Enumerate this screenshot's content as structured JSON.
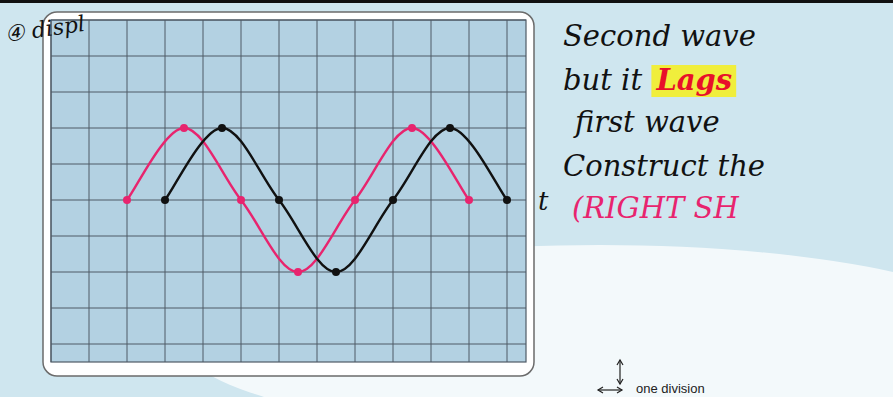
{
  "chart_data": {
    "type": "line",
    "y_label": "④ displ",
    "x_label": "t",
    "annotations": [
      "Second wave",
      "but it",
      "Lags",
      "first wave",
      "Construct the",
      "(RIGHT SH"
    ],
    "scale_note": "one division",
    "xlim": [
      0,
      12.5
    ],
    "ylim": [
      -4.5,
      5
    ],
    "xticks": [
      0,
      1,
      2,
      3,
      4,
      5,
      6,
      7,
      8,
      9,
      10,
      11,
      12
    ],
    "yticks": [
      -4,
      -3,
      -2,
      -1,
      0,
      1,
      2,
      3,
      4,
      5
    ],
    "grid": true,
    "tick_labels": false,
    "series": [
      {
        "color": "#e8246e",
        "marker": "circle",
        "x": [
          2,
          3.5,
          5,
          6.5,
          8,
          9.5,
          11
        ],
        "values": [
          0,
          2,
          0,
          -2,
          0,
          2,
          0
        ]
      },
      {
        "color": "#111111",
        "marker": "circle",
        "x": [
          3,
          4.5,
          6,
          7.5,
          9,
          10.5,
          12
        ],
        "values": [
          0,
          2,
          0,
          -2,
          0,
          2,
          0
        ]
      }
    ]
  }
}
